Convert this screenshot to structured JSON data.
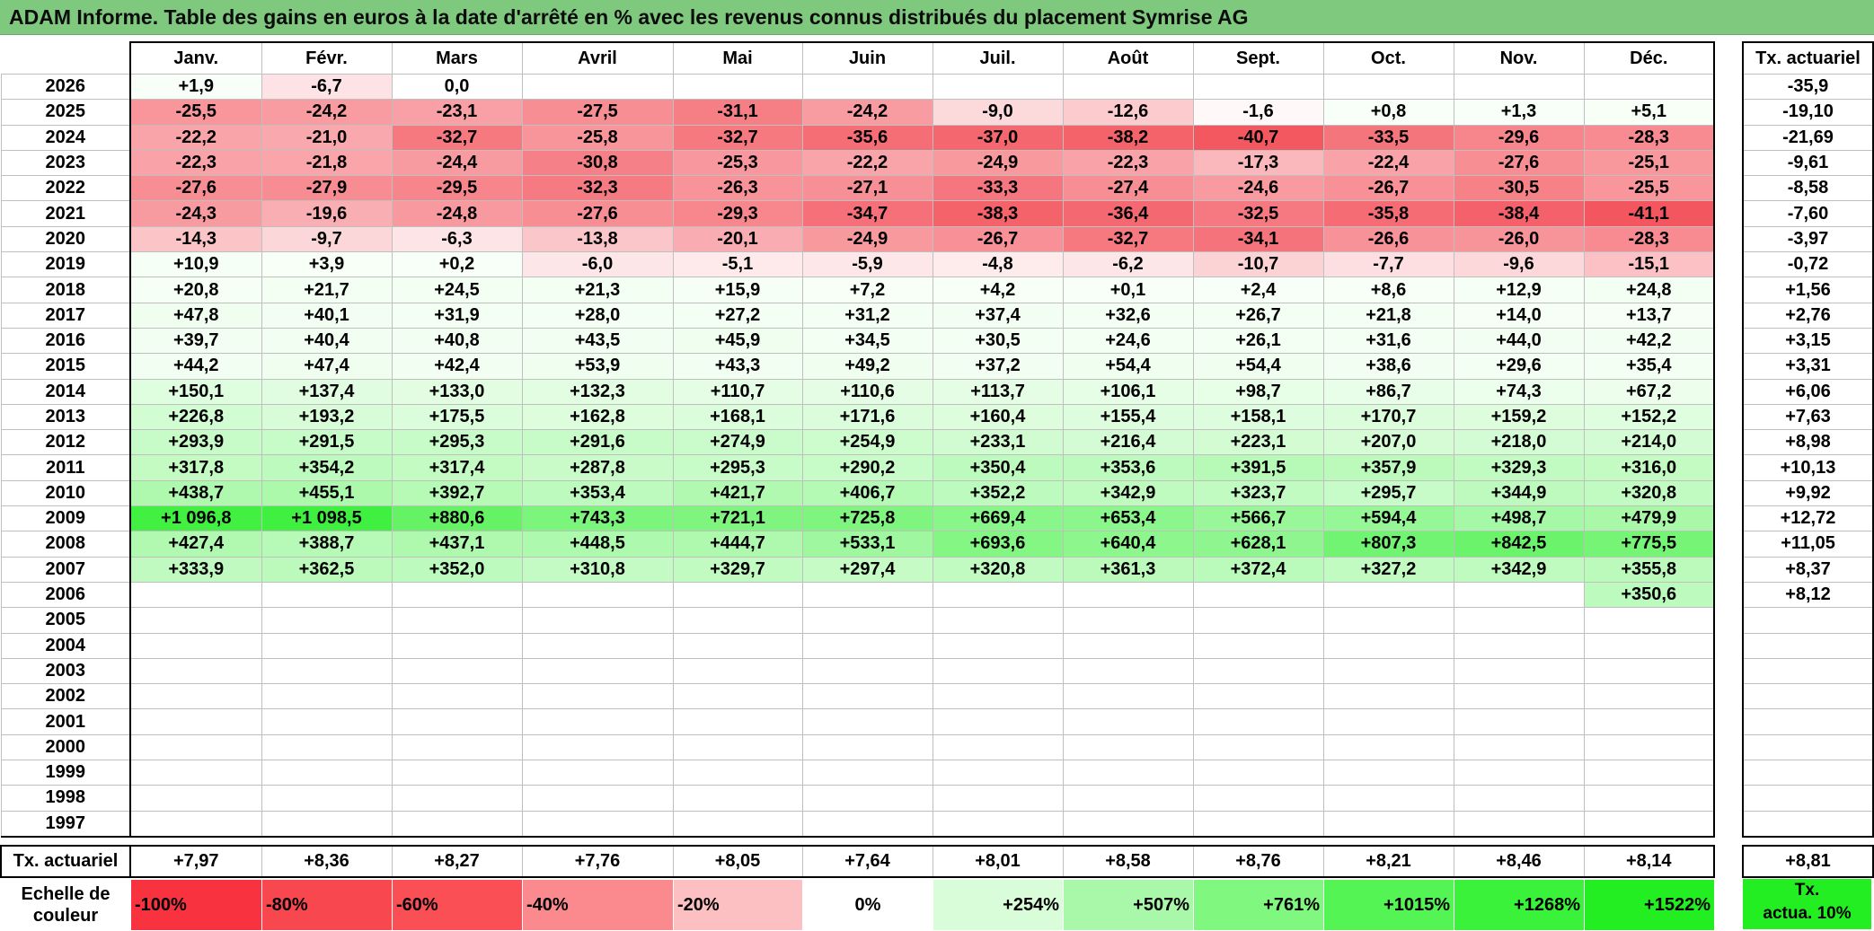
{
  "title": "ADAM Informe. Table des gains en euros à la date d'arrêté en % avec les revenus connus distribués du placement Symrise AG",
  "months": [
    "Janv.",
    "Févr.",
    "Mars",
    "Avril",
    "Mai",
    "Juin",
    "Juil.",
    "Août",
    "Sept.",
    "Oct.",
    "Nov.",
    "Déc."
  ],
  "actuarial_header": "Tx. actuariel",
  "footer_label": "Tx. actuariel",
  "rows": [
    {
      "year": "2026",
      "cells": [
        "+1,9",
        "-6,7",
        "0,0",
        "",
        "",
        "",
        "",
        "",
        "",
        "",
        "",
        ""
      ],
      "act": "-35,9"
    },
    {
      "year": "2025",
      "cells": [
        "-25,5",
        "-24,2",
        "-23,1",
        "-27,5",
        "-31,1",
        "-24,2",
        "-9,0",
        "-12,6",
        "-1,6",
        "+0,8",
        "+1,3",
        "+5,1"
      ],
      "act": "-19,10"
    },
    {
      "year": "2024",
      "cells": [
        "-22,2",
        "-21,0",
        "-32,7",
        "-25,8",
        "-32,7",
        "-35,6",
        "-37,0",
        "-38,2",
        "-40,7",
        "-33,5",
        "-29,6",
        "-28,3"
      ],
      "act": "-21,69"
    },
    {
      "year": "2023",
      "cells": [
        "-22,3",
        "-21,8",
        "-24,4",
        "-30,8",
        "-25,3",
        "-22,2",
        "-24,9",
        "-22,3",
        "-17,3",
        "-22,4",
        "-27,6",
        "-25,1"
      ],
      "act": "-9,61"
    },
    {
      "year": "2022",
      "cells": [
        "-27,6",
        "-27,9",
        "-29,5",
        "-32,3",
        "-26,3",
        "-27,1",
        "-33,3",
        "-27,4",
        "-24,6",
        "-26,7",
        "-30,5",
        "-25,5"
      ],
      "act": "-8,58"
    },
    {
      "year": "2021",
      "cells": [
        "-24,3",
        "-19,6",
        "-24,8",
        "-27,6",
        "-29,3",
        "-34,7",
        "-38,3",
        "-36,4",
        "-32,5",
        "-35,8",
        "-38,4",
        "-41,1"
      ],
      "act": "-7,60"
    },
    {
      "year": "2020",
      "cells": [
        "-14,3",
        "-9,7",
        "-6,3",
        "-13,8",
        "-20,1",
        "-24,9",
        "-26,7",
        "-32,7",
        "-34,1",
        "-26,6",
        "-26,0",
        "-28,3"
      ],
      "act": "-3,97"
    },
    {
      "year": "2019",
      "cells": [
        "+10,9",
        "+3,9",
        "+0,2",
        "-6,0",
        "-5,1",
        "-5,9",
        "-4,8",
        "-6,2",
        "-10,7",
        "-7,7",
        "-9,6",
        "-15,1"
      ],
      "act": "-0,72"
    },
    {
      "year": "2018",
      "cells": [
        "+20,8",
        "+21,7",
        "+24,5",
        "+21,3",
        "+15,9",
        "+7,2",
        "+4,2",
        "+0,1",
        "+2,4",
        "+8,6",
        "+12,9",
        "+24,8"
      ],
      "act": "+1,56"
    },
    {
      "year": "2017",
      "cells": [
        "+47,8",
        "+40,1",
        "+31,9",
        "+28,0",
        "+27,2",
        "+31,2",
        "+37,4",
        "+32,6",
        "+26,7",
        "+21,8",
        "+14,0",
        "+13,7"
      ],
      "act": "+2,76"
    },
    {
      "year": "2016",
      "cells": [
        "+39,7",
        "+40,4",
        "+40,8",
        "+43,5",
        "+45,9",
        "+34,5",
        "+30,5",
        "+24,6",
        "+26,1",
        "+31,6",
        "+44,0",
        "+42,2"
      ],
      "act": "+3,15"
    },
    {
      "year": "2015",
      "cells": [
        "+44,2",
        "+47,4",
        "+42,4",
        "+53,9",
        "+43,3",
        "+49,2",
        "+37,2",
        "+54,4",
        "+54,4",
        "+38,6",
        "+29,6",
        "+35,4"
      ],
      "act": "+3,31"
    },
    {
      "year": "2014",
      "cells": [
        "+150,1",
        "+137,4",
        "+133,0",
        "+132,3",
        "+110,7",
        "+110,6",
        "+113,7",
        "+106,1",
        "+98,7",
        "+86,7",
        "+74,3",
        "+67,2"
      ],
      "act": "+6,06"
    },
    {
      "year": "2013",
      "cells": [
        "+226,8",
        "+193,2",
        "+175,5",
        "+162,8",
        "+168,1",
        "+171,6",
        "+160,4",
        "+155,4",
        "+158,1",
        "+170,7",
        "+159,2",
        "+152,2"
      ],
      "act": "+7,63"
    },
    {
      "year": "2012",
      "cells": [
        "+293,9",
        "+291,5",
        "+295,3",
        "+291,6",
        "+274,9",
        "+254,9",
        "+233,1",
        "+216,4",
        "+223,1",
        "+207,0",
        "+218,0",
        "+214,0"
      ],
      "act": "+8,98"
    },
    {
      "year": "2011",
      "cells": [
        "+317,8",
        "+354,2",
        "+317,4",
        "+287,8",
        "+295,3",
        "+290,2",
        "+350,4",
        "+353,6",
        "+391,5",
        "+357,9",
        "+329,3",
        "+316,0"
      ],
      "act": "+10,13"
    },
    {
      "year": "2010",
      "cells": [
        "+438,7",
        "+455,1",
        "+392,7",
        "+353,4",
        "+421,7",
        "+406,7",
        "+352,2",
        "+342,9",
        "+323,7",
        "+295,7",
        "+344,9",
        "+320,8"
      ],
      "act": "+9,92"
    },
    {
      "year": "2009",
      "cells": [
        "+1 096,8",
        "+1 098,5",
        "+880,6",
        "+743,3",
        "+721,1",
        "+725,8",
        "+669,4",
        "+653,4",
        "+566,7",
        "+594,4",
        "+498,7",
        "+479,9"
      ],
      "act": "+12,72"
    },
    {
      "year": "2008",
      "cells": [
        "+427,4",
        "+388,7",
        "+437,1",
        "+448,5",
        "+444,7",
        "+533,1",
        "+693,6",
        "+640,4",
        "+628,1",
        "+807,3",
        "+842,5",
        "+775,5"
      ],
      "act": "+11,05"
    },
    {
      "year": "2007",
      "cells": [
        "+333,9",
        "+362,5",
        "+352,0",
        "+310,8",
        "+329,7",
        "+297,4",
        "+320,8",
        "+361,3",
        "+372,4",
        "+327,2",
        "+342,9",
        "+355,8"
      ],
      "act": "+8,37"
    },
    {
      "year": "2006",
      "cells": [
        "",
        "",
        "",
        "",
        "",
        "",
        "",
        "",
        "",
        "",
        "",
        "+350,6"
      ],
      "act": "+8,12"
    },
    {
      "year": "2005",
      "cells": [
        "",
        "",
        "",
        "",
        "",
        "",
        "",
        "",
        "",
        "",
        "",
        ""
      ],
      "act": ""
    },
    {
      "year": "2004",
      "cells": [
        "",
        "",
        "",
        "",
        "",
        "",
        "",
        "",
        "",
        "",
        "",
        ""
      ],
      "act": ""
    },
    {
      "year": "2003",
      "cells": [
        "",
        "",
        "",
        "",
        "",
        "",
        "",
        "",
        "",
        "",
        "",
        ""
      ],
      "act": ""
    },
    {
      "year": "2002",
      "cells": [
        "",
        "",
        "",
        "",
        "",
        "",
        "",
        "",
        "",
        "",
        "",
        ""
      ],
      "act": ""
    },
    {
      "year": "2001",
      "cells": [
        "",
        "",
        "",
        "",
        "",
        "",
        "",
        "",
        "",
        "",
        "",
        ""
      ],
      "act": ""
    },
    {
      "year": "2000",
      "cells": [
        "",
        "",
        "",
        "",
        "",
        "",
        "",
        "",
        "",
        "",
        "",
        ""
      ],
      "act": ""
    },
    {
      "year": "1999",
      "cells": [
        "",
        "",
        "",
        "",
        "",
        "",
        "",
        "",
        "",
        "",
        "",
        ""
      ],
      "act": ""
    },
    {
      "year": "1998",
      "cells": [
        "",
        "",
        "",
        "",
        "",
        "",
        "",
        "",
        "",
        "",
        "",
        ""
      ],
      "act": ""
    },
    {
      "year": "1997",
      "cells": [
        "",
        "",
        "",
        "",
        "",
        "",
        "",
        "",
        "",
        "",
        "",
        ""
      ],
      "act": ""
    }
  ],
  "footer_values": [
    "+7,97",
    "+8,36",
    "+8,27",
    "+7,76",
    "+8,05",
    "+7,64",
    "+8,01",
    "+8,58",
    "+8,76",
    "+8,21",
    "+8,46",
    "+8,14"
  ],
  "footer_act": "+8,81",
  "scale": {
    "label_line1": "Echelle de",
    "label_line2": "couleur",
    "swatches": [
      {
        "label": "-100%",
        "color": "#f8323f"
      },
      {
        "label": "-80%",
        "color": "#f9474f"
      },
      {
        "label": "-60%",
        "color": "#fa4f55"
      },
      {
        "label": "-40%",
        "color": "#fb8a8f"
      },
      {
        "label": "-20%",
        "color": "#fcbfc2"
      },
      {
        "label": "0%",
        "color": "#ffffff"
      },
      {
        "label": "+254%",
        "color": "#d8fdd8"
      },
      {
        "label": "+507%",
        "color": "#a9f7a9"
      },
      {
        "label": "+761%",
        "color": "#80f880"
      },
      {
        "label": "+1015%",
        "color": "#55f455"
      },
      {
        "label": "+1268%",
        "color": "#3af23a"
      },
      {
        "label": "+1522%",
        "color": "#22ee22"
      }
    ],
    "act_line1": "Tx.",
    "act_line2": "actua. 10%",
    "act_color": "#22ee22"
  }
}
